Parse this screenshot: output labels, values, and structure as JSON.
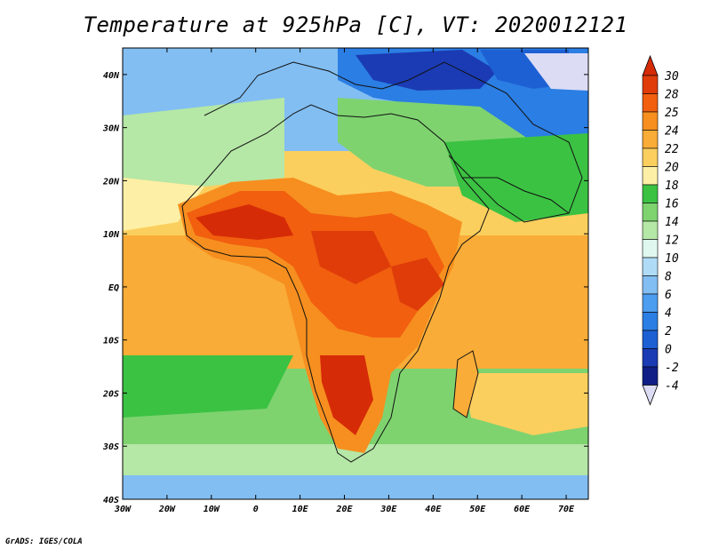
{
  "title": "Temperature at 925hPa [C], VT: 2020012121",
  "credit": "GrADS: IGES/COLA",
  "map": {
    "variable": "Temperature at 925hPa",
    "units": "C",
    "valid_time": "2020012121",
    "region": "Africa",
    "lon_range": [
      -30,
      75
    ],
    "lat_range": [
      -40,
      45
    ],
    "x_ticks": [
      "30W",
      "20W",
      "10W",
      "0",
      "10E",
      "20E",
      "30E",
      "40E",
      "50E",
      "60E",
      "70E"
    ],
    "y_ticks": [
      "40N",
      "30N",
      "20N",
      "10N",
      "EQ",
      "10S",
      "20S",
      "30S",
      "40S"
    ]
  },
  "colorbar": {
    "labels": [
      "30",
      "28",
      "25",
      "24",
      "22",
      "20",
      "18",
      "16",
      "14",
      "12",
      "10",
      "8",
      "6",
      "4",
      "2",
      "0",
      "-2",
      "-4"
    ],
    "colors": {
      "above_30": "#d62b07",
      "28_30": "#e03c0a",
      "25_28": "#f15f0f",
      "24_25": "#f68f1f",
      "22_24": "#f9ac37",
      "20_22": "#fbcf5e",
      "18_20": "#fdf0a6",
      "16_18": "#3bc243",
      "14_16": "#7ed36f",
      "12_14": "#b5e7a6",
      "10_12": "#e0f7ef",
      "8_10": "#b0dbf6",
      "6_8": "#82bef2",
      "4_6": "#4c9cef",
      "2_4": "#2b7ee3",
      "0_2": "#1d60d4",
      "m2_0": "#1b3bb4",
      "m4_m2": "#0f1f86",
      "below_m4": "#dcdcf5"
    }
  }
}
